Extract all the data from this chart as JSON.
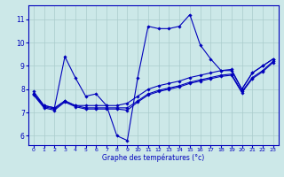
{
  "title": "",
  "xlabel": "Graphe des températures (°c)",
  "ylabel": "",
  "xlim": [
    -0.5,
    23.5
  ],
  "ylim": [
    5.6,
    11.6
  ],
  "xticks": [
    0,
    1,
    2,
    3,
    4,
    5,
    6,
    7,
    8,
    9,
    10,
    11,
    12,
    13,
    14,
    15,
    16,
    17,
    18,
    19,
    20,
    21,
    22,
    23
  ],
  "yticks": [
    6,
    7,
    8,
    9,
    10,
    11
  ],
  "background_color": "#cce8e8",
  "grid_color": "#aacccc",
  "line_color": "#0000bb",
  "line1_x": [
    0,
    1,
    2,
    3,
    4,
    5,
    6,
    7,
    8,
    9,
    10,
    11,
    12,
    13,
    14,
    15,
    16,
    17,
    18,
    19,
    20,
    21,
    22,
    23
  ],
  "line1_y": [
    7.9,
    7.3,
    7.2,
    9.4,
    8.5,
    7.7,
    7.8,
    7.3,
    6.0,
    5.8,
    8.5,
    10.7,
    10.6,
    10.6,
    10.7,
    11.2,
    9.9,
    9.3,
    8.8,
    8.8,
    8.0,
    8.7,
    9.0,
    9.3
  ],
  "line2_x": [
    0,
    1,
    2,
    3,
    4,
    5,
    6,
    7,
    8,
    9,
    10,
    11,
    12,
    13,
    14,
    15,
    16,
    17,
    18,
    19,
    20,
    21,
    22,
    23
  ],
  "line2_y": [
    7.8,
    7.3,
    7.2,
    7.5,
    7.3,
    7.3,
    7.3,
    7.3,
    7.3,
    7.4,
    7.7,
    8.0,
    8.15,
    8.25,
    8.35,
    8.5,
    8.6,
    8.7,
    8.8,
    8.85,
    8.0,
    8.7,
    9.0,
    9.3
  ],
  "line3_x": [
    0,
    1,
    2,
    3,
    4,
    5,
    6,
    7,
    8,
    9,
    10,
    11,
    12,
    13,
    14,
    15,
    16,
    17,
    18,
    19,
    20,
    21,
    22,
    23
  ],
  "line3_y": [
    7.8,
    7.25,
    7.15,
    7.5,
    7.3,
    7.2,
    7.2,
    7.2,
    7.2,
    7.2,
    7.5,
    7.8,
    7.95,
    8.05,
    8.15,
    8.3,
    8.4,
    8.5,
    8.6,
    8.65,
    7.9,
    8.5,
    8.8,
    9.2
  ],
  "line4_x": [
    0,
    1,
    2,
    3,
    4,
    5,
    6,
    7,
    8,
    9,
    10,
    11,
    12,
    13,
    14,
    15,
    16,
    17,
    18,
    19,
    20,
    21,
    22,
    23
  ],
  "line4_y": [
    7.75,
    7.2,
    7.1,
    7.45,
    7.25,
    7.15,
    7.15,
    7.15,
    7.15,
    7.1,
    7.45,
    7.75,
    7.9,
    8.0,
    8.1,
    8.25,
    8.35,
    8.45,
    8.55,
    8.6,
    7.85,
    8.45,
    8.75,
    9.15
  ]
}
